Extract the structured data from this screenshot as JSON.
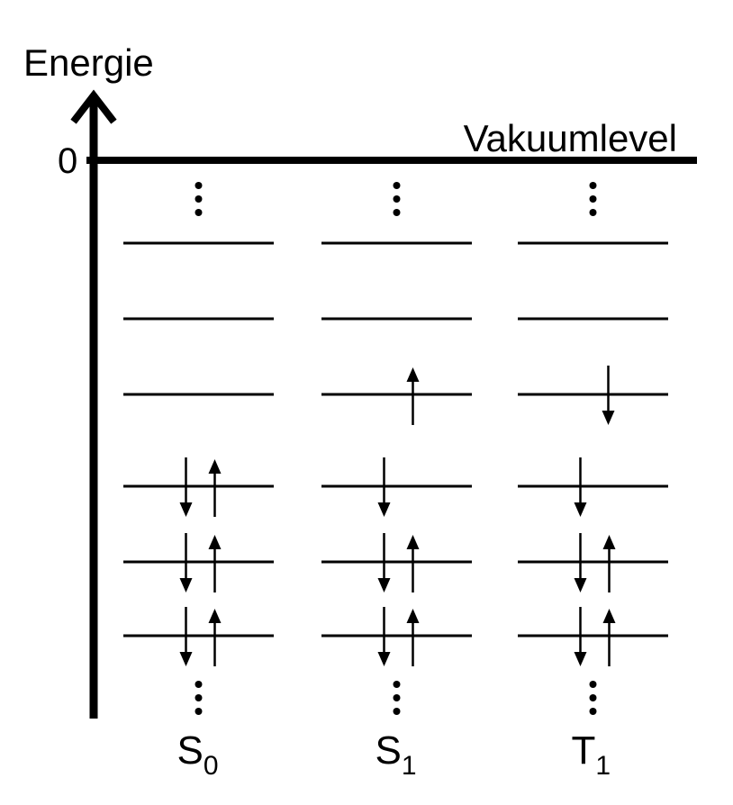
{
  "axis": {
    "y_label": "Energie",
    "zero_label": "0",
    "vacuum_label": "Vakuumlevel"
  },
  "states": [
    {
      "id": "s0",
      "label_main": "S",
      "label_sub": "0",
      "levels": [
        {
          "level": "upper-3",
          "spins": []
        },
        {
          "level": "upper-2",
          "spins": []
        },
        {
          "level": "upper-1",
          "spins": []
        },
        {
          "level": "lower-1",
          "spins": [
            "down",
            "up"
          ]
        },
        {
          "level": "lower-2",
          "spins": [
            "down",
            "up"
          ]
        },
        {
          "level": "lower-3",
          "spins": [
            "down",
            "up"
          ]
        }
      ]
    },
    {
      "id": "s1",
      "label_main": "S",
      "label_sub": "1",
      "levels": [
        {
          "level": "upper-3",
          "spins": []
        },
        {
          "level": "upper-2",
          "spins": []
        },
        {
          "level": "upper-1",
          "spins": [
            "up"
          ]
        },
        {
          "level": "lower-1",
          "spins": [
            "down"
          ]
        },
        {
          "level": "lower-2",
          "spins": [
            "down",
            "up"
          ]
        },
        {
          "level": "lower-3",
          "spins": [
            "down",
            "up"
          ]
        }
      ]
    },
    {
      "id": "t1",
      "label_main": "T",
      "label_sub": "1",
      "levels": [
        {
          "level": "upper-3",
          "spins": []
        },
        {
          "level": "upper-2",
          "spins": []
        },
        {
          "level": "upper-1",
          "spins": [
            "down"
          ]
        },
        {
          "level": "lower-1",
          "spins": [
            "down"
          ]
        },
        {
          "level": "lower-2",
          "spins": [
            "down",
            "up"
          ]
        },
        {
          "level": "lower-3",
          "spins": [
            "down",
            "up"
          ]
        }
      ]
    }
  ]
}
